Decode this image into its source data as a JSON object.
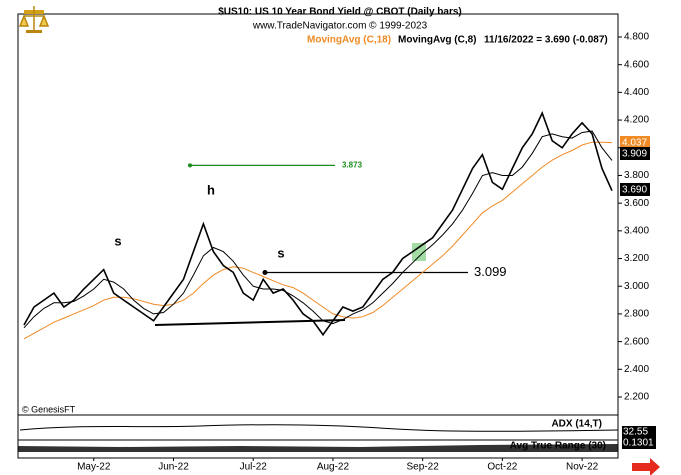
{
  "chart_data": {
    "type": "line",
    "title": "$US10:  US 10 Year Bond Yield @ CBOT  (Daily bars)",
    "subtitle": "www.TradeNavigator.com © 1999-2023",
    "legend_note": "11/16/2022 = 3.690 (-0.087)",
    "categories": [
      null,
      null,
      null,
      null,
      null,
      null,
      null,
      "May-22",
      null,
      null,
      null,
      null,
      null,
      null,
      null,
      "Jun-22",
      null,
      null,
      null,
      null,
      null,
      null,
      null,
      "Jul-22",
      null,
      null,
      null,
      null,
      null,
      null,
      null,
      "Aug-22",
      null,
      null,
      null,
      null,
      null,
      null,
      null,
      null,
      "Sep-22",
      null,
      null,
      null,
      null,
      null,
      null,
      null,
      "Oct-22",
      null,
      null,
      null,
      null,
      null,
      null,
      null,
      "Nov-22",
      null,
      null,
      null
    ],
    "price": {
      "color": "#000000",
      "values": [
        2.72,
        2.85,
        2.9,
        2.95,
        2.85,
        2.9,
        2.98,
        3.05,
        3.12,
        2.95,
        2.9,
        2.85,
        2.8,
        2.75,
        2.85,
        2.95,
        3.05,
        3.25,
        3.45,
        3.25,
        3.15,
        3.1,
        2.95,
        2.9,
        3.05,
        2.95,
        2.98,
        2.9,
        2.8,
        2.75,
        2.65,
        2.75,
        2.85,
        2.82,
        2.85,
        2.95,
        3.05,
        3.1,
        3.2,
        3.25,
        3.3,
        3.35,
        3.45,
        3.55,
        3.7,
        3.85,
        3.95,
        3.75,
        3.7,
        3.85,
        4.0,
        4.1,
        4.25,
        4.05,
        4.0,
        4.1,
        4.18,
        4.1,
        3.85,
        3.69
      ]
    },
    "series": [
      {
        "name": "MovingAvg (C,18)",
        "color": "#f08a24",
        "values": [
          2.62,
          2.66,
          2.7,
          2.74,
          2.77,
          2.8,
          2.83,
          2.86,
          2.9,
          2.92,
          2.92,
          2.91,
          2.89,
          2.87,
          2.86,
          2.87,
          2.9,
          2.95,
          3.02,
          3.08,
          3.12,
          3.14,
          3.13,
          3.1,
          3.07,
          3.04,
          3.01,
          2.99,
          2.95,
          2.9,
          2.85,
          2.8,
          2.78,
          2.77,
          2.78,
          2.81,
          2.86,
          2.92,
          2.98,
          3.04,
          3.1,
          3.16,
          3.22,
          3.29,
          3.37,
          3.45,
          3.53,
          3.58,
          3.62,
          3.68,
          3.74,
          3.8,
          3.86,
          3.91,
          3.95,
          3.98,
          4.02,
          4.04,
          4.04,
          4.037
        ]
      },
      {
        "name": "MovingAvg (C,8)",
        "color": "#000000",
        "values": [
          2.7,
          2.78,
          2.84,
          2.88,
          2.88,
          2.89,
          2.93,
          2.98,
          3.05,
          3.03,
          2.98,
          2.9,
          2.84,
          2.8,
          2.81,
          2.87,
          2.95,
          3.08,
          3.22,
          3.28,
          3.25,
          3.18,
          3.08,
          3.0,
          2.98,
          2.98,
          2.97,
          2.93,
          2.88,
          2.82,
          2.75,
          2.73,
          2.76,
          2.8,
          2.83,
          2.88,
          2.95,
          3.02,
          3.1,
          3.17,
          3.24,
          3.3,
          3.37,
          3.45,
          3.55,
          3.67,
          3.8,
          3.82,
          3.8,
          3.8,
          3.86,
          3.96,
          4.08,
          4.1,
          4.08,
          4.07,
          4.11,
          4.12,
          4.0,
          3.909
        ]
      }
    ],
    "price_tags": [
      {
        "value": 4.037,
        "label": "4.037",
        "color": "#f08a24"
      },
      {
        "value": 3.909,
        "label": "3.909",
        "color": "#000000"
      },
      {
        "value": 3.69,
        "label": "3.690",
        "color": "#000000"
      }
    ],
    "levels": [
      {
        "value": 3.873,
        "label": "3.873",
        "color": "#1a8c1a"
      },
      {
        "value": 3.099,
        "label": "3.099",
        "color": "#000000"
      }
    ],
    "annotations": [
      "s",
      "h",
      "s"
    ],
    "copyright": "© GenesisFT",
    "indicators": [
      {
        "name": "ADX (14,T)",
        "label": "32.55"
      },
      {
        "name": "Avg True Range (30)",
        "label": "0.1301"
      }
    ],
    "ylim": [
      2.07,
      4.966
    ],
    "yticks": [
      {
        "value": 2.2,
        "label": "2.200"
      },
      {
        "value": 2.4,
        "label": "2.400"
      },
      {
        "value": 2.6,
        "label": "2.600"
      },
      {
        "value": 2.8,
        "label": "2.800"
      },
      {
        "value": 3.0,
        "label": "3.000"
      },
      {
        "value": 3.2,
        "label": "3.200"
      },
      {
        "value": 3.4,
        "label": "3.400"
      },
      {
        "value": 3.6,
        "label": "3.600"
      },
      {
        "value": 3.8,
        "label": "3.800"
      },
      {
        "value": 4.0,
        "label": "4.000"
      },
      {
        "value": 4.2,
        "label": "4.200"
      },
      {
        "value": 4.4,
        "label": "4.400"
      },
      {
        "value": 4.6,
        "label": "4.600"
      },
      {
        "value": 4.8,
        "label": "4.800"
      }
    ]
  }
}
